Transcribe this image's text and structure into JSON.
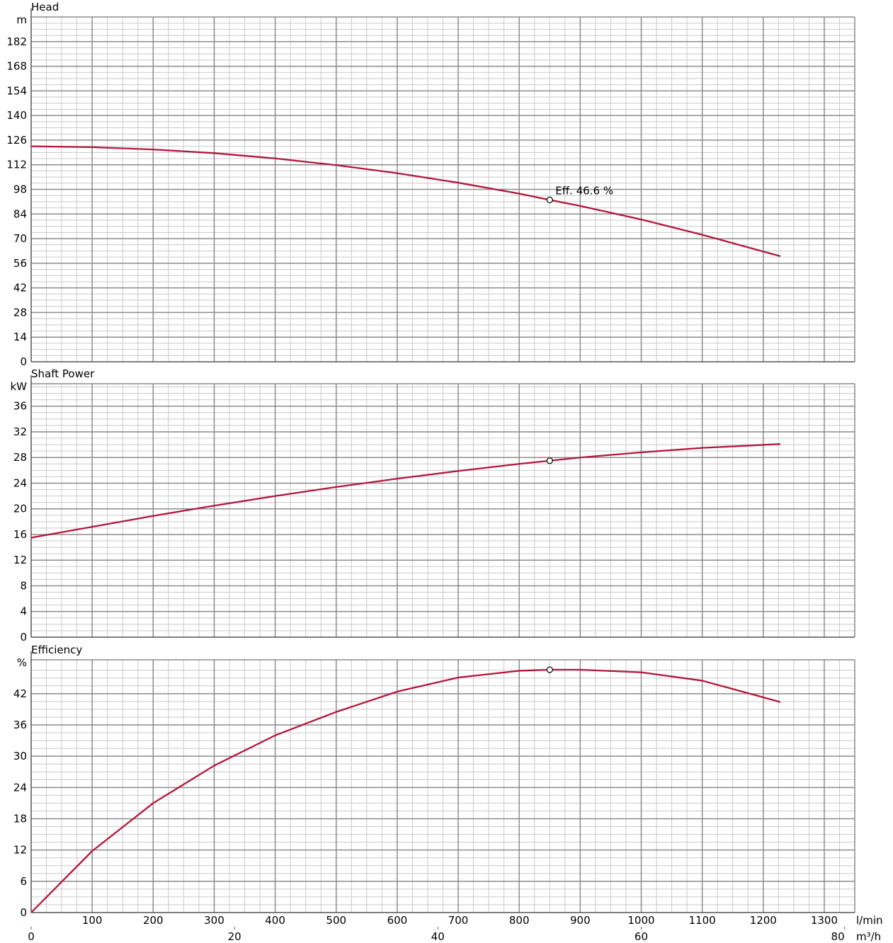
{
  "chart_data": {
    "type": "line",
    "x_unit": "l/min",
    "x2_unit": "m³/h",
    "x_ticks": [
      100,
      200,
      300,
      400,
      500,
      600,
      700,
      800,
      900,
      1000,
      1100,
      1200,
      1300
    ],
    "x2_ticks": [
      0,
      20,
      40,
      60,
      80
    ],
    "xlim": [
      0,
      1350
    ],
    "duty_point": {
      "x": 850,
      "head": 92,
      "power": 27.5,
      "efficiency": 46.6,
      "label": "Eff. 46.6 %"
    },
    "panels": [
      {
        "title": "Head",
        "unit": "m",
        "ylim": [
          0,
          196
        ],
        "yticks": [
          0,
          14,
          28,
          42,
          56,
          70,
          84,
          98,
          112,
          126,
          140,
          154,
          168,
          182
        ],
        "series": [
          {
            "x": [
              0,
              100,
              200,
              300,
              400,
              500,
              600,
              700,
              800,
              850,
              900,
              1000,
              1100,
              1228
            ],
            "y": [
              122.5,
              122,
              120.7,
              118.6,
              115.6,
              111.8,
              107.2,
              101.8,
              95.6,
              92,
              88.6,
              80.9,
              72.2,
              60
            ]
          }
        ]
      },
      {
        "title": "Shaft Power",
        "unit": "kW",
        "ylim": [
          0,
          39.5
        ],
        "yticks": [
          0,
          4,
          8,
          12,
          16,
          20,
          24,
          28,
          32,
          36
        ],
        "series": [
          {
            "x": [
              0,
              100,
              200,
              300,
              400,
              500,
              600,
              700,
              800,
              850,
              900,
              1000,
              1100,
              1228
            ],
            "y": [
              15.5,
              17.2,
              18.9,
              20.5,
              22,
              23.4,
              24.7,
              25.9,
              27,
              27.5,
              28,
              28.8,
              29.5,
              30.1
            ]
          }
        ]
      },
      {
        "title": "Efficiency",
        "unit": "%",
        "ylim": [
          0,
          48.5
        ],
        "yticks": [
          0,
          6,
          12,
          18,
          24,
          30,
          36,
          42
        ],
        "series": [
          {
            "x": [
              0,
              100,
              200,
              300,
              400,
              500,
              600,
              700,
              800,
              850,
              900,
              1000,
              1100,
              1228
            ],
            "y": [
              0,
              11.8,
              21,
              28.2,
              34,
              38.5,
              42.4,
              45.1,
              46.4,
              46.6,
              46.6,
              46.1,
              44.5,
              40.4
            ]
          }
        ]
      }
    ]
  }
}
